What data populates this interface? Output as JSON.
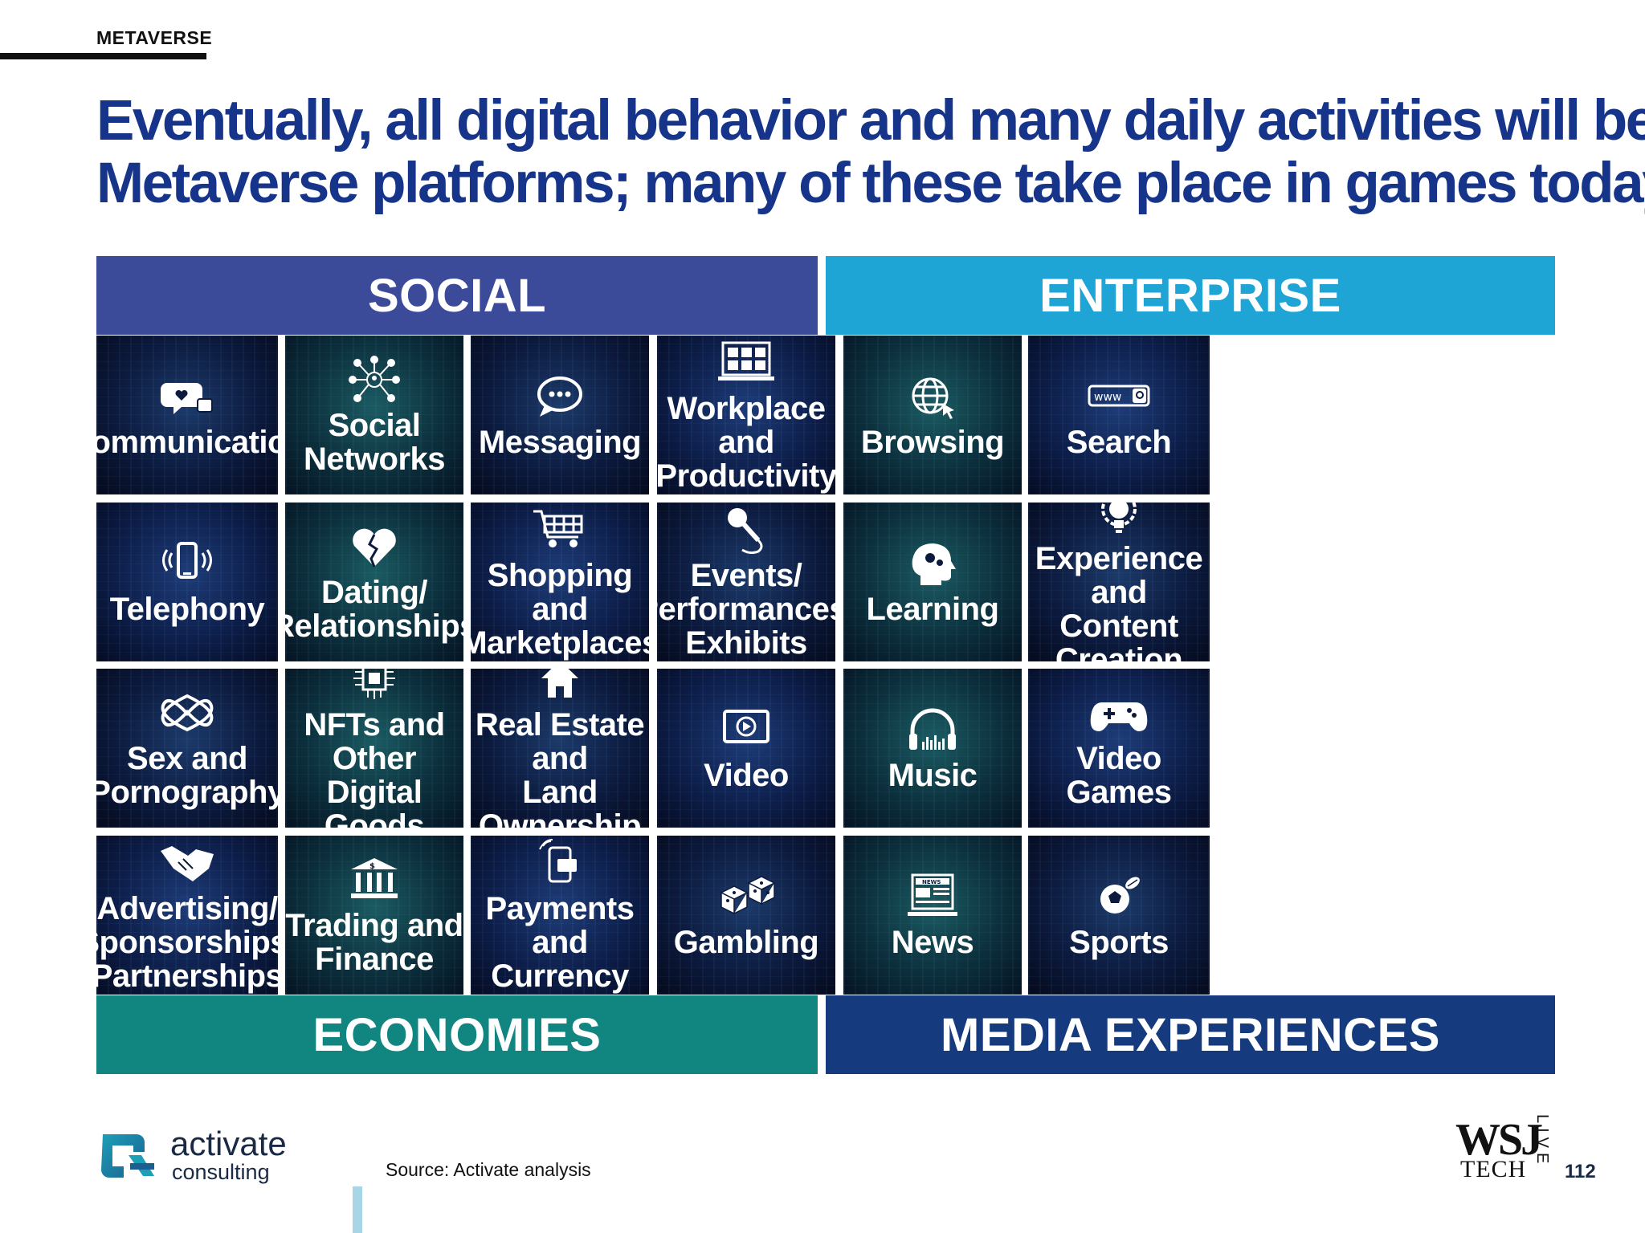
{
  "section_label": "METAVERSE",
  "title_lines": [
    "Eventually, all digital behavior and many daily activities will be in",
    "Metaverse platforms; many of these take place in games today"
  ],
  "colors": {
    "title": "#16358a",
    "social": "#3c4a9a",
    "enterprise": "#1ea5d6",
    "economies": "#11857f",
    "media": "#163a7e"
  },
  "quadrants": {
    "social": "SOCIAL",
    "enterprise": "ENTERPRISE",
    "economies": "ECONOMIES",
    "media": "MEDIA EXPERIENCES"
  },
  "tiles": [
    {
      "label": "Communication",
      "icon": "chat-heart-like-icon"
    },
    {
      "label": "Social\nNetworks",
      "icon": "network-people-icon"
    },
    {
      "label": "Messaging",
      "icon": "speech-bubble-icon"
    },
    {
      "label": "Workplace and\nProductivity",
      "icon": "video-conference-icon"
    },
    {
      "label": "Browsing",
      "icon": "globe-cursor-icon"
    },
    {
      "label": "Search",
      "icon": "search-bar-icon"
    },
    {
      "label": "Telephony",
      "icon": "phone-ringing-icon"
    },
    {
      "label": "Dating/\nRelationships",
      "icon": "broken-heart-icon"
    },
    {
      "label": "Shopping and\nMarketplaces",
      "icon": "shopping-cart-icon"
    },
    {
      "label": "Events/\nPerformances/\nExhibits",
      "icon": "microphone-icon"
    },
    {
      "label": "Learning",
      "icon": "head-gears-icon"
    },
    {
      "label": "Experience and\nContent Creation",
      "icon": "lightbulb-gear-icon"
    },
    {
      "label": "Sex and\nPornography",
      "icon": "intertwined-hearts-icon"
    },
    {
      "label": "NFTs and Other\nDigital Goods",
      "icon": "chip-icon"
    },
    {
      "label": "Real Estate and\nLand Ownership",
      "icon": "house-icon"
    },
    {
      "label": "Video",
      "icon": "play-screen-icon"
    },
    {
      "label": "Music",
      "icon": "headphones-icon"
    },
    {
      "label": "Video Games",
      "icon": "gamepad-icon"
    },
    {
      "label": "Advertising/\nSponsorships/\nPartnerships",
      "icon": "handshake-icon"
    },
    {
      "label": "Trading and\nFinance",
      "icon": "bank-icon"
    },
    {
      "label": "Payments and\nCurrency",
      "icon": "mobile-payment-icon"
    },
    {
      "label": "Gambling",
      "icon": "dice-icon"
    },
    {
      "label": "News",
      "icon": "news-icon"
    },
    {
      "label": "Sports",
      "icon": "sports-ball-icon"
    }
  ],
  "footer": {
    "logo_line1": "activate",
    "logo_line2": "consulting",
    "source": "Source: Activate analysis",
    "wsj_main": "WSJ",
    "wsj_tech": "TECH",
    "wsj_live": "LIVE",
    "page_number": "112"
  }
}
